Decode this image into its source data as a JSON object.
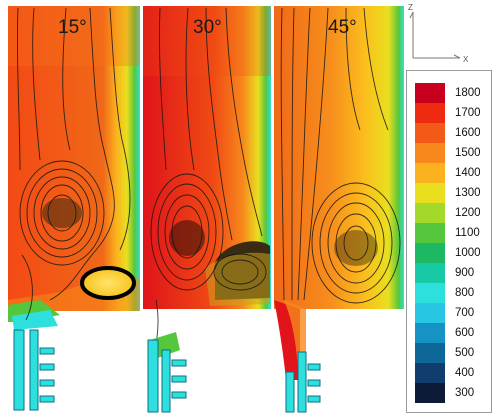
{
  "panels": [
    {
      "label": "15°"
    },
    {
      "label": "30°"
    },
    {
      "label": "45°"
    }
  ],
  "axes_indicator": {
    "z_label": "Z",
    "x_label": "X"
  },
  "legend": {
    "ticks": [
      "1800",
      "1700",
      "1600",
      "1500",
      "1400",
      "1300",
      "1200",
      "1100",
      "1000",
      "900",
      "800",
      "700",
      "600",
      "500",
      "400",
      "300"
    ],
    "colors": [
      "#c8001e",
      "#ee2a10",
      "#f35a18",
      "#f7881c",
      "#fbb21e",
      "#e9df1f",
      "#a3d92a",
      "#55c73d",
      "#1fb862",
      "#17c9a4",
      "#2ee0dd",
      "#27c7e4",
      "#1593c4",
      "#0d6797",
      "#103d6b",
      "#0b1a36"
    ]
  }
}
